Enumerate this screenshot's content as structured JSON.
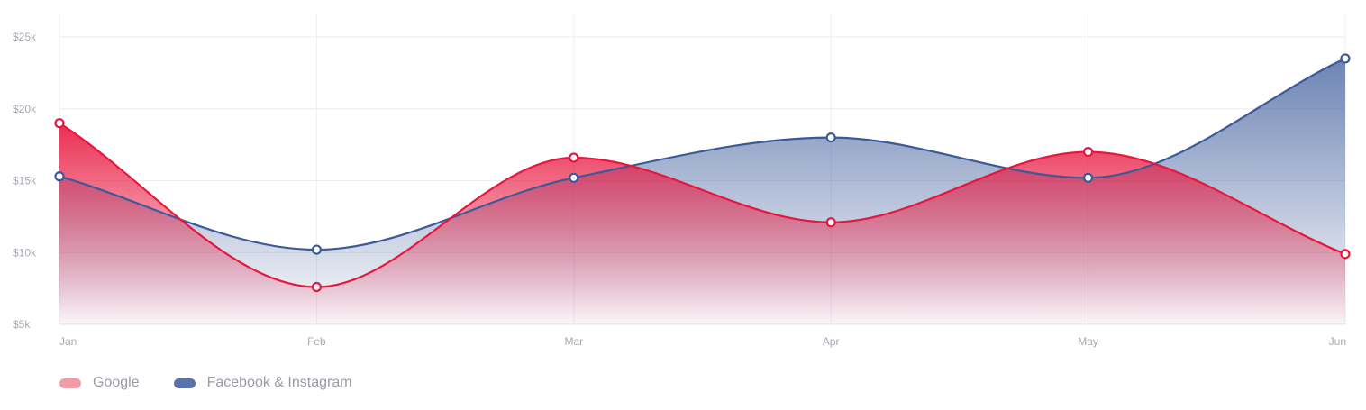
{
  "chart_data": {
    "type": "area",
    "categories": [
      "Jan",
      "Feb",
      "Mar",
      "Apr",
      "May",
      "Jun"
    ],
    "y_ticks": [
      "$5k",
      "$10k",
      "$15k",
      "$20k",
      "$25k"
    ],
    "ylim": [
      5000,
      25000
    ],
    "grid": true,
    "legend_position": "bottom-left",
    "series": [
      {
        "name": "Google",
        "values": [
          19000,
          7600,
          16600,
          12100,
          17000,
          9900
        ],
        "line_color": "#e8173e",
        "swatch_color": "#f09ca8"
      },
      {
        "name": "Facebook & Instagram",
        "values": [
          15300,
          10200,
          15200,
          18000,
          15200,
          23500
        ],
        "line_color": "#3b5a9a",
        "swatch_color": "#5b73aa"
      }
    ]
  }
}
